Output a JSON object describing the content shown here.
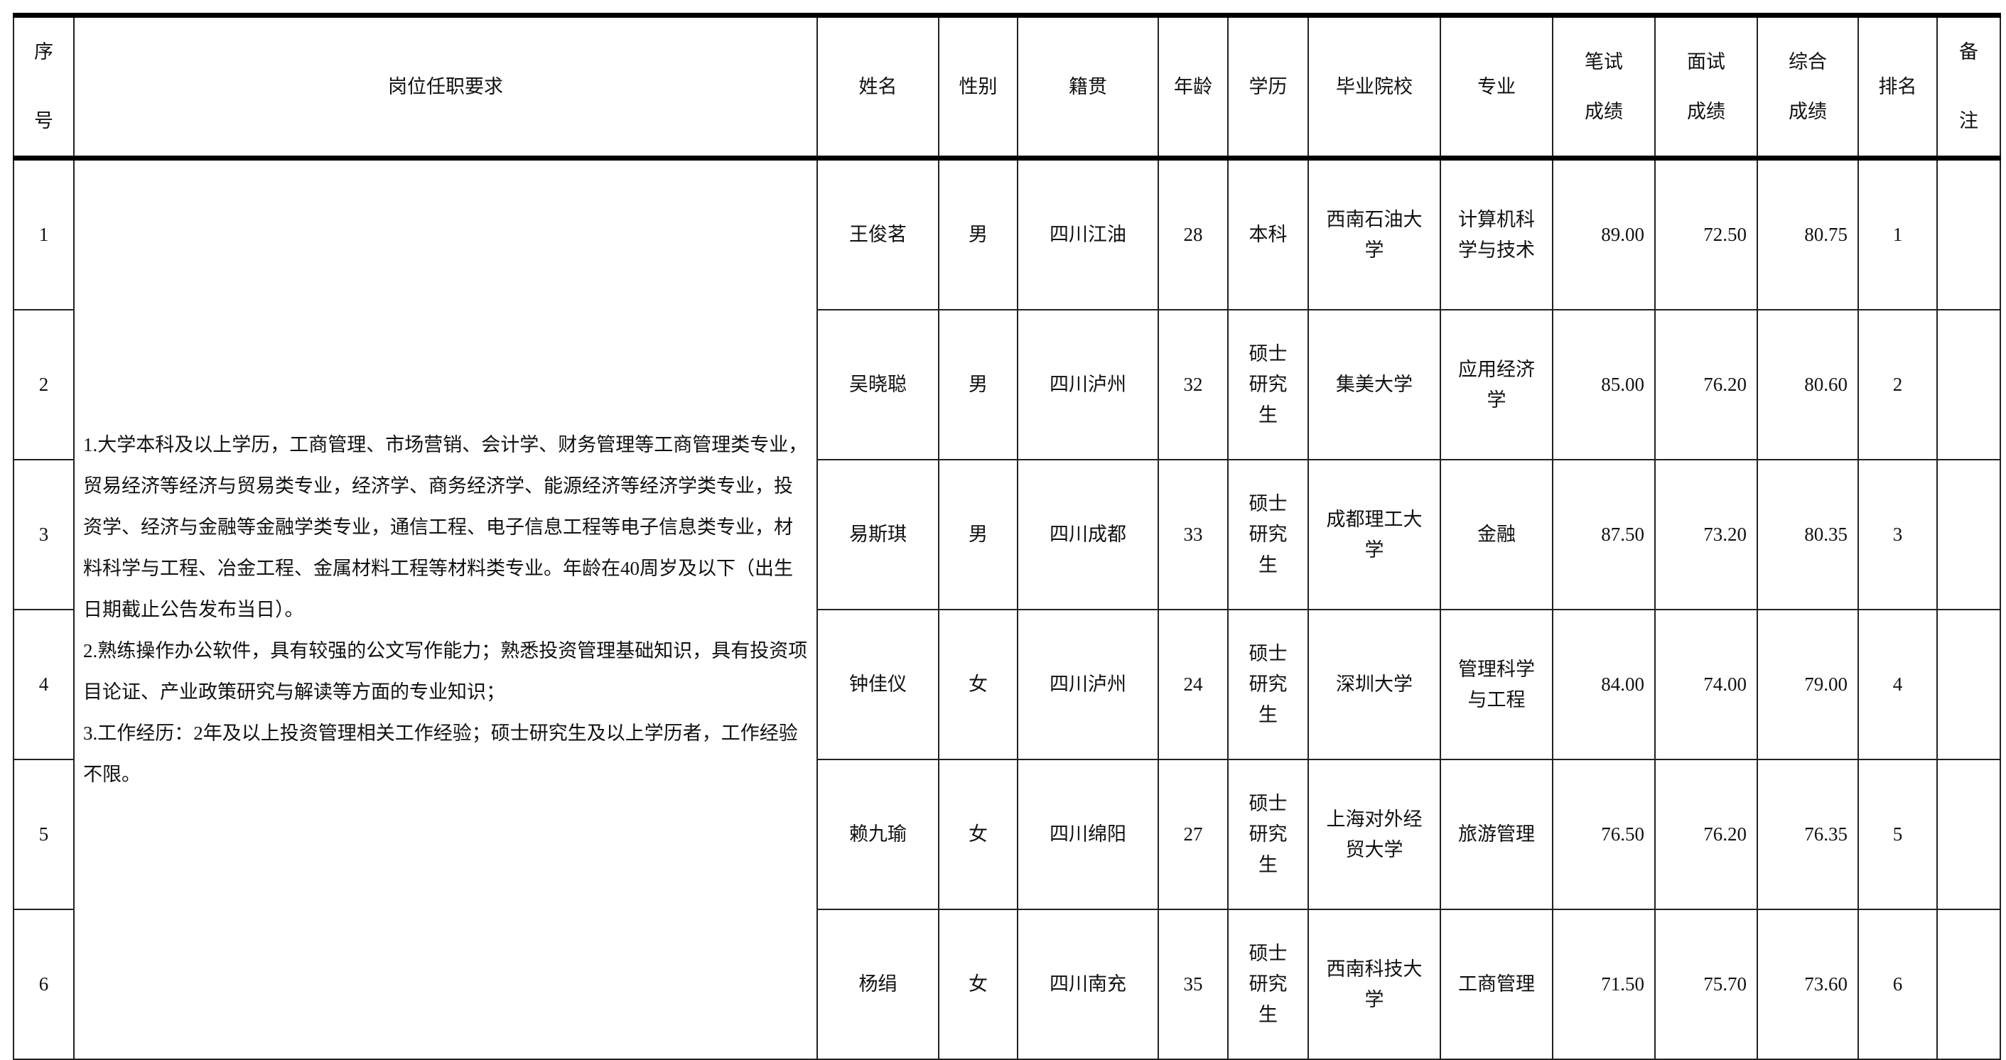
{
  "headers": {
    "seq": [
      "序",
      "号"
    ],
    "requirements": "岗位任职要求",
    "name": "姓名",
    "gender": "性别",
    "origin": "籍贯",
    "age": "年龄",
    "education": "学历",
    "school": "毕业院校",
    "major": "专业",
    "written": [
      "笔试",
      "成绩"
    ],
    "interview": [
      "面试",
      "成绩"
    ],
    "overall": [
      "综合",
      "成绩"
    ],
    "rank": "排名",
    "remark": [
      "备",
      "注"
    ]
  },
  "requirements": [
    "1.大学本科及以上学历，工商管理、市场营销、会计学、财务管理等工商管理类专业，贸易经济等经济与贸易类专业，经济学、商务经济学、能源经济等经济学类专业，投资学、经济与金融等金融学类专业，通信工程、电子信息工程等电子信息类专业，材料科学与工程、冶金工程、金属材料工程等材料类专业。年龄在40周岁及以下（出生日期截止公告发布当日）。",
    "2.熟练操作办公软件，具有较强的公文写作能力；熟悉投资管理基础知识，具有投资项目论证、产业政策研究与解读等方面的专业知识；",
    "3.工作经历：2年及以上投资管理相关工作经验；硕士研究生及以上学历者，工作经验不限。"
  ],
  "rows": [
    {
      "seq": "1",
      "name": "王俊茗",
      "gender": "男",
      "origin": "四川江油",
      "age": "28",
      "education": [
        "本科"
      ],
      "school": [
        "西南石油大",
        "学"
      ],
      "major": [
        "计算机科",
        "学与技术"
      ],
      "written": "89.00",
      "interview": "72.50",
      "overall": "80.75",
      "rank": "1",
      "remark": ""
    },
    {
      "seq": "2",
      "name": "吴晓聪",
      "gender": "男",
      "origin": "四川泸州",
      "age": "32",
      "education": [
        "硕士",
        "研究",
        "生"
      ],
      "school": [
        "集美大学"
      ],
      "major": [
        "应用经济",
        "学"
      ],
      "written": "85.00",
      "interview": "76.20",
      "overall": "80.60",
      "rank": "2",
      "remark": ""
    },
    {
      "seq": "3",
      "name": "易斯琪",
      "gender": "男",
      "origin": "四川成都",
      "age": "33",
      "education": [
        "硕士",
        "研究",
        "生"
      ],
      "school": [
        "成都理工大",
        "学"
      ],
      "major": [
        "金融"
      ],
      "written": "87.50",
      "interview": "73.20",
      "overall": "80.35",
      "rank": "3",
      "remark": ""
    },
    {
      "seq": "4",
      "name": "钟佳仪",
      "gender": "女",
      "origin": "四川泸州",
      "age": "24",
      "education": [
        "硕士",
        "研究",
        "生"
      ],
      "school": [
        "深圳大学"
      ],
      "major": [
        "管理科学",
        "与工程"
      ],
      "written": "84.00",
      "interview": "74.00",
      "overall": "79.00",
      "rank": "4",
      "remark": ""
    },
    {
      "seq": "5",
      "name": "赖九瑜",
      "gender": "女",
      "origin": "四川绵阳",
      "age": "27",
      "education": [
        "硕士",
        "研究",
        "生"
      ],
      "school": [
        "上海对外经",
        "贸大学"
      ],
      "major": [
        "旅游管理"
      ],
      "written": "76.50",
      "interview": "76.20",
      "overall": "76.35",
      "rank": "5",
      "remark": ""
    },
    {
      "seq": "6",
      "name": "杨绢",
      "gender": "女",
      "origin": "四川南充",
      "age": "35",
      "education": [
        "硕士",
        "研究",
        "生"
      ],
      "school": [
        "西南科技大",
        "学"
      ],
      "major": [
        "工商管理"
      ],
      "written": "71.50",
      "interview": "75.70",
      "overall": "73.60",
      "rank": "6",
      "remark": ""
    }
  ]
}
